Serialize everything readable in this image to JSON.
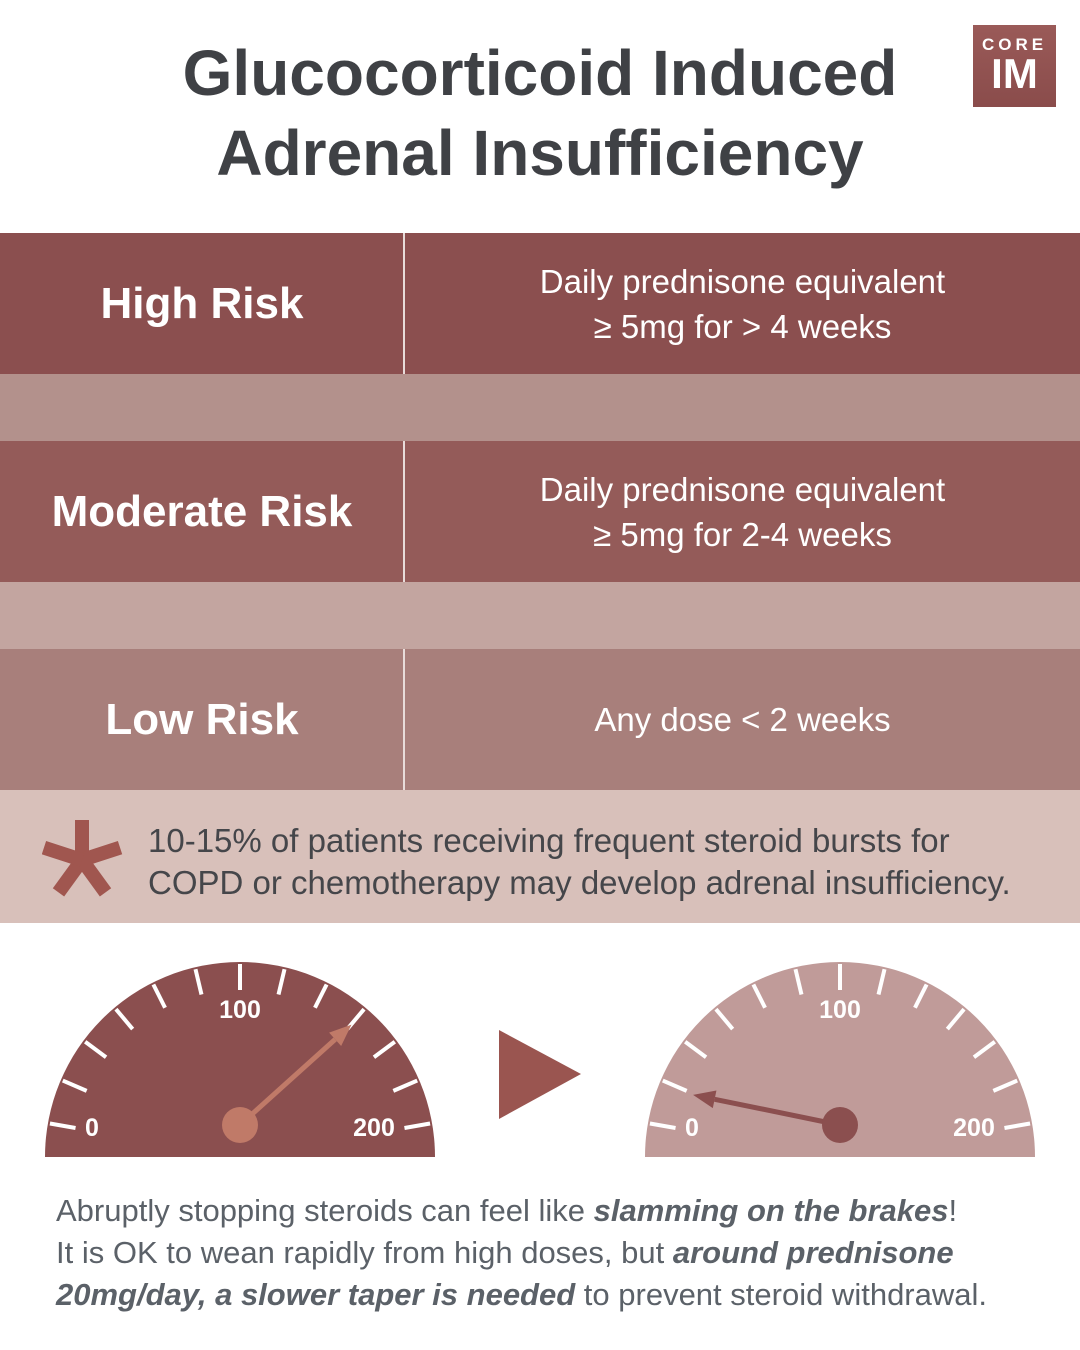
{
  "title": {
    "line1": "Glucocorticoid Induced",
    "line2": "Adrenal Insufficiency"
  },
  "logo": {
    "top": "CORE",
    "bottom": "IM"
  },
  "rows": [
    {
      "label": "High Risk",
      "desc1": "Daily prednisone equivalent",
      "desc2": "≥ 5mg for > 4 weeks",
      "color": "#8b4f4f"
    },
    {
      "label": "Moderate Risk",
      "desc1": "Daily prednisone equivalent",
      "desc2": "≥ 5mg for 2-4 weeks",
      "color": "#945b59"
    },
    {
      "label": "Low Risk",
      "desc1": "Any dose < 2 weeks",
      "desc2": "",
      "color": "#a87f7b"
    }
  ],
  "spacer_colors": [
    "#b3918c",
    "#c3a5a0"
  ],
  "note": {
    "icon": "asterisk-icon",
    "line1": "10-15% of patients receiving frequent steroid bursts for",
    "line2": "COPD or chemotherapy may develop adrenal insufficiency.",
    "icon_color": "#a0564f"
  },
  "gauges": [
    {
      "labels": [
        "0",
        "100",
        "200"
      ],
      "value": 160,
      "face": "#8b4f4f",
      "needle": "#c07a68"
    },
    {
      "labels": [
        "0",
        "100",
        "200"
      ],
      "value": 2,
      "face": "#c09b99",
      "needle": "#8b4f4f"
    }
  ],
  "arrow_color": "#9a5550",
  "footer": {
    "p1": "Abruptly stopping steroids can feel like ",
    "b1": "slamming on the brakes",
    "p2": "!",
    "p3": "It is OK to wean rapidly from high doses, but ",
    "b2": "around prednisone",
    "b3": "20mg/day, a slower taper is needed",
    "p4": " to prevent steroid withdrawal."
  }
}
